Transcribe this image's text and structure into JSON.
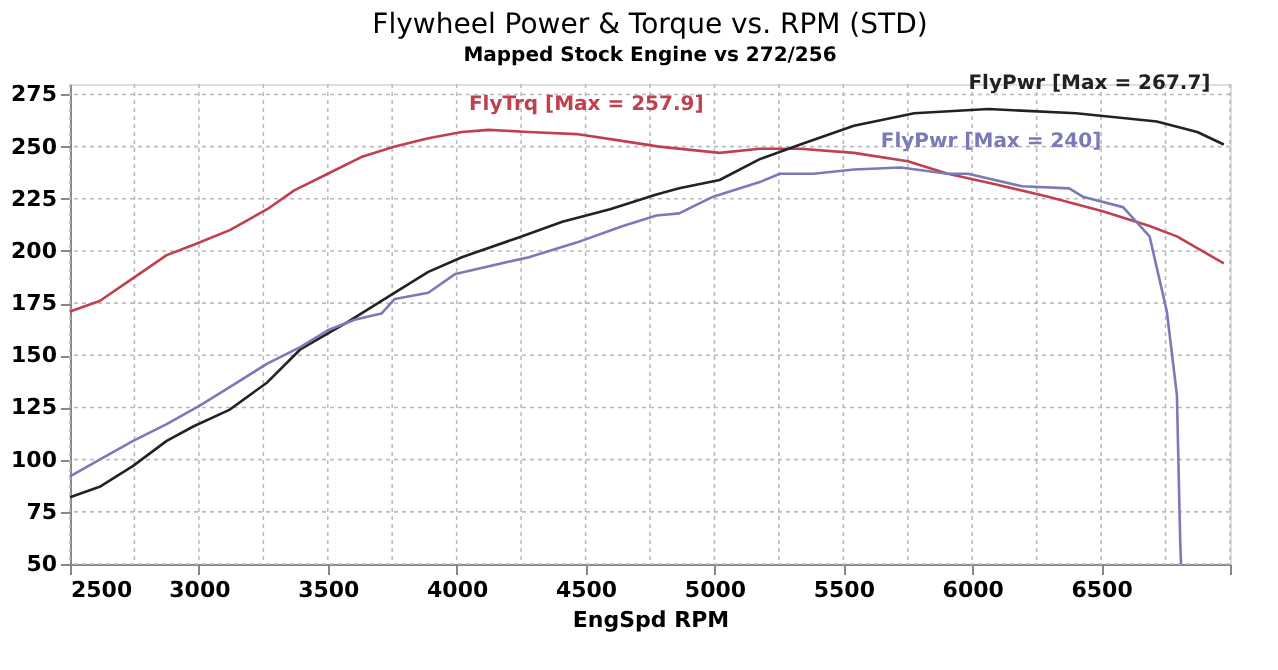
{
  "chart_data": {
    "type": "line",
    "title": "Flywheel Power & Torque vs. RPM (STD)",
    "subtitle": "Mapped Stock Engine vs 272/256",
    "xlabel": "EngSpd RPM",
    "xlim": [
      2500,
      7000
    ],
    "ylim": [
      50,
      280
    ],
    "xticks": [
      2500,
      {
        "value": 2750,
        "label": null
      },
      3000,
      {
        "value": 3250,
        "label": null
      },
      3500,
      {
        "value": 3750,
        "label": null
      },
      4000,
      {
        "value": 4250,
        "label": null
      },
      4500,
      {
        "value": 4750,
        "label": null
      },
      5000,
      {
        "value": 5250,
        "label": null
      },
      5500,
      {
        "value": 5750,
        "label": null
      },
      6000,
      {
        "value": 6250,
        "label": null
      },
      6500,
      {
        "value": 6750,
        "label": null
      },
      {
        "value": 7000,
        "label": null
      }
    ],
    "yticks": [
      50,
      75,
      100,
      125,
      150,
      175,
      200,
      225,
      250,
      275
    ],
    "grid": true,
    "line_style": "solid",
    "marker": "none",
    "series": [
      {
        "name": "FlyTrq [Max = 257.9]",
        "color": "#c0404f",
        "x": [
          2500,
          2615,
          2745,
          2875,
          2980,
          3120,
          3265,
          3370,
          3500,
          3630,
          3760,
          3890,
          4020,
          4125,
          4280,
          4465,
          4628,
          4785,
          5020,
          5176,
          5333,
          5541,
          5750,
          5905,
          6089,
          6295,
          6506,
          6688,
          6794,
          6976
        ],
        "values": [
          171,
          176,
          187,
          198,
          203,
          210,
          220,
          229,
          237,
          245,
          250,
          254,
          257,
          258,
          257,
          256,
          253,
          250,
          247,
          249,
          249,
          247,
          243,
          237,
          232,
          226,
          219,
          212,
          207,
          194
        ]
      },
      {
        "name": "FlyPwr [Max = 267.7]",
        "color": "#222222",
        "x": [
          2500,
          2615,
          2745,
          2875,
          2980,
          3120,
          3265,
          3395,
          3578,
          3760,
          3890,
          4020,
          4230,
          4410,
          4595,
          4775,
          4863,
          5020,
          5176,
          5333,
          5541,
          5775,
          6063,
          6403,
          6716,
          6873,
          6976
        ],
        "values": [
          82,
          87,
          97,
          109,
          116,
          124,
          137,
          153,
          166,
          180,
          190,
          197,
          206,
          214,
          220,
          227,
          230,
          234,
          244,
          251,
          260,
          266,
          268,
          266,
          262,
          257,
          251
        ]
      },
      {
        "name": "FlyPwr [Max = 240]",
        "color": "#7a7ab8",
        "x": [
          2500,
          2615,
          2745,
          2875,
          3005,
          3135,
          3265,
          3395,
          3500,
          3604,
          3708,
          3760,
          3890,
          3995,
          4100,
          4280,
          4465,
          4645,
          4775,
          4863,
          4995,
          5176,
          5254,
          5385,
          5541,
          5723,
          5905,
          5983,
          6193,
          6376,
          6429,
          6585,
          6688,
          6755,
          6794,
          6807,
          6810
        ],
        "values": [
          92,
          100,
          109,
          117,
          126,
          136,
          146,
          154,
          162,
          167,
          170,
          177,
          180,
          189,
          192,
          197,
          204,
          212,
          217,
          218,
          226,
          233,
          237,
          237,
          239,
          240,
          237,
          237,
          231,
          230,
          226,
          221,
          207,
          171,
          131,
          60,
          50
        ]
      }
    ]
  }
}
